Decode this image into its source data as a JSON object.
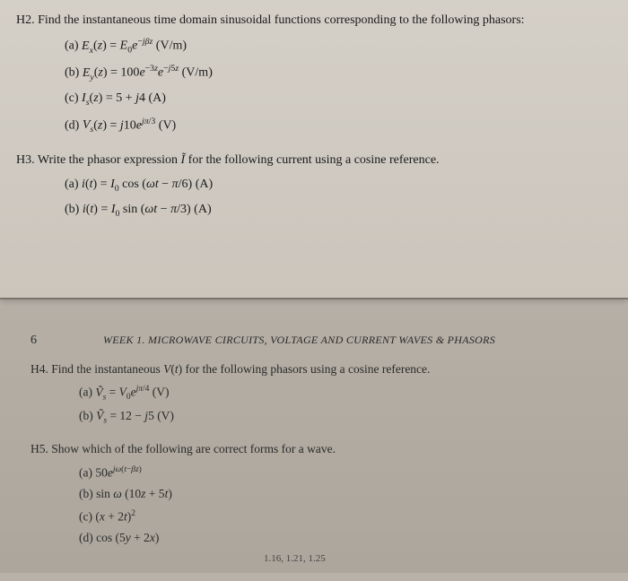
{
  "top": {
    "h2": {
      "header": "H2. Find the instantaneous time domain sinusoidal functions corresponding to the following phasors:",
      "a": "(a) Eₓ(z) = E₀e⁻ʲᵝᶻ (V/m)",
      "b": "(b) E_y(z) = 100e⁻³ᶻe⁻ʲ⁵ᶻ (V/m)",
      "c": "(c) Iₛ(z) = 5 + j4 (A)",
      "d": "(d) Vₛ(z) = j10eʲᵖ/³ (V)"
    },
    "h3": {
      "header": "H3. Write the phasor expression Ĩ for the following current using a cosine reference.",
      "a": "(a) i(t) = I₀ cos (ωt − π/6) (A)",
      "b": "(b) i(t) = I₀ sin (ωt − π/3) (A)"
    }
  },
  "bottom": {
    "page_number": "6",
    "chapter": "WEEK 1. MICROWAVE CIRCUITS, VOLTAGE AND CURRENT WAVES & PHASORS",
    "h4": {
      "header": "H4. Find the instantaneous V(t) for the following phasors using a cosine reference.",
      "a": "(a) Ṽₛ = V₀eʲᵖ/⁴ (V)",
      "b": "(b) Ṽₛ = 12 − j5 (V)"
    },
    "h5": {
      "header": "H5. Show which of the following are correct forms for a wave.",
      "a": "(a) 50eʲω(t−βz)",
      "b": "(b) sin ω (10z + 5t)",
      "c": "(c) (x + 2t)²",
      "d": "(d) cos (5y + 2x)"
    },
    "footer": "1.16, 1.21, 1.25"
  }
}
